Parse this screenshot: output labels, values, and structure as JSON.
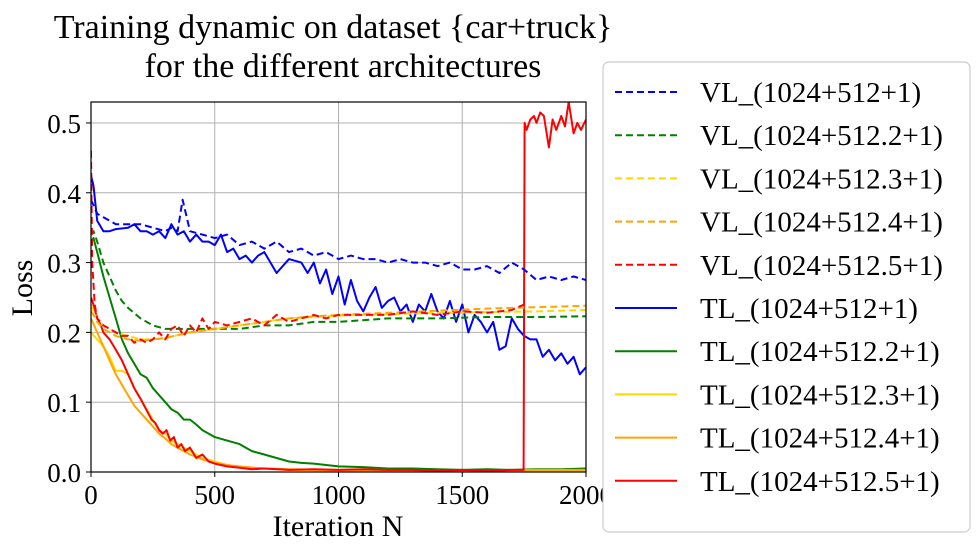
{
  "chart_data": {
    "type": "line",
    "title": "Training dynamic on dataset {car+truck}",
    "subtitle": "for the different architectures",
    "xlabel": "Iteration N",
    "ylabel": "Loss",
    "xlim": [
      0,
      2000
    ],
    "ylim": [
      0,
      0.53
    ],
    "xticks": [
      "0",
      "500",
      "1000",
      "1500",
      "2000"
    ],
    "yticks": [
      "0.0",
      "0.1",
      "0.2",
      "0.3",
      "0.4",
      "0.5"
    ],
    "grid": true,
    "legend_position": "outside-right",
    "series": [
      {
        "name": "VL_(1024+512+1)",
        "color": "#0000ff",
        "dash": "dashed",
        "x": [
          0,
          25,
          50,
          75,
          100,
          150,
          200,
          250,
          300,
          325,
          350,
          370,
          400,
          450,
          500,
          550,
          600,
          650,
          700,
          750,
          800,
          850,
          900,
          950,
          1000,
          1050,
          1100,
          1150,
          1200,
          1250,
          1300,
          1350,
          1400,
          1450,
          1500,
          1550,
          1600,
          1650,
          1700,
          1750,
          1800,
          1850,
          1900,
          1950,
          2000
        ],
        "y": [
          0.39,
          0.37,
          0.365,
          0.36,
          0.355,
          0.355,
          0.355,
          0.35,
          0.345,
          0.35,
          0.345,
          0.39,
          0.345,
          0.34,
          0.335,
          0.34,
          0.325,
          0.33,
          0.32,
          0.33,
          0.315,
          0.32,
          0.31,
          0.315,
          0.305,
          0.31,
          0.305,
          0.305,
          0.3,
          0.305,
          0.3,
          0.3,
          0.295,
          0.3,
          0.29,
          0.29,
          0.295,
          0.285,
          0.3,
          0.29,
          0.275,
          0.28,
          0.275,
          0.28,
          0.275
        ]
      },
      {
        "name": "VL_(1024+512.2+1)",
        "color": "#008000",
        "dash": "dashed",
        "x": [
          0,
          10,
          25,
          50,
          75,
          100,
          125,
          150,
          200,
          250,
          300,
          350,
          400,
          500,
          600,
          700,
          800,
          900,
          1000,
          1200,
          1400,
          1600,
          1800,
          2000
        ],
        "y": [
          0.34,
          0.345,
          0.33,
          0.3,
          0.28,
          0.26,
          0.245,
          0.235,
          0.22,
          0.21,
          0.205,
          0.205,
          0.205,
          0.205,
          0.205,
          0.21,
          0.21,
          0.215,
          0.215,
          0.22,
          0.22,
          0.222,
          0.222,
          0.223
        ]
      },
      {
        "name": "VL_(1024+512.3+1)",
        "color": "#ffd700",
        "dash": "dashed",
        "x": [
          0,
          10,
          25,
          50,
          75,
          100,
          150,
          200,
          250,
          300,
          400,
          500,
          600,
          700,
          800,
          900,
          1000,
          1200,
          1400,
          1600,
          1800,
          2000
        ],
        "y": [
          0.24,
          0.23,
          0.22,
          0.21,
          0.205,
          0.2,
          0.195,
          0.19,
          0.19,
          0.192,
          0.2,
          0.205,
          0.21,
          0.215,
          0.22,
          0.222,
          0.224,
          0.226,
          0.228,
          0.229,
          0.23,
          0.232
        ]
      },
      {
        "name": "VL_(1024+512.4+1)",
        "color": "#ffa500",
        "dash": "dashed",
        "x": [
          0,
          10,
          25,
          50,
          75,
          100,
          150,
          200,
          250,
          300,
          400,
          500,
          600,
          700,
          800,
          900,
          1000,
          1200,
          1400,
          1600,
          1800,
          2000
        ],
        "y": [
          0.23,
          0.225,
          0.215,
          0.205,
          0.2,
          0.195,
          0.19,
          0.188,
          0.19,
          0.192,
          0.2,
          0.205,
          0.21,
          0.215,
          0.22,
          0.223,
          0.225,
          0.228,
          0.231,
          0.234,
          0.236,
          0.238
        ]
      },
      {
        "name": "VL_(1024+512.5+1)",
        "color": "#ff0000",
        "dash": "dashed",
        "x": [
          0,
          5,
          15,
          25,
          50,
          75,
          100,
          125,
          150,
          175,
          200,
          225,
          250,
          275,
          300,
          325,
          350,
          375,
          400,
          425,
          450,
          475,
          500,
          550,
          600,
          650,
          700,
          750,
          800,
          850,
          900,
          950,
          1000,
          1100,
          1200,
          1300,
          1400,
          1500,
          1600,
          1700,
          1750
        ],
        "y": [
          0.46,
          0.3,
          0.24,
          0.22,
          0.21,
          0.205,
          0.2,
          0.195,
          0.195,
          0.185,
          0.19,
          0.185,
          0.19,
          0.2,
          0.19,
          0.205,
          0.21,
          0.195,
          0.21,
          0.2,
          0.22,
          0.205,
          0.215,
          0.21,
          0.215,
          0.22,
          0.21,
          0.225,
          0.215,
          0.22,
          0.225,
          0.22,
          0.225,
          0.225,
          0.225,
          0.23,
          0.225,
          0.23,
          0.228,
          0.232,
          0.24
        ]
      },
      {
        "name": "TL_(1024+512+1)",
        "color": "#0000ff",
        "dash": "solid",
        "x": [
          0,
          10,
          25,
          50,
          75,
          100,
          150,
          175,
          200,
          225,
          250,
          275,
          300,
          325,
          350,
          375,
          400,
          425,
          450,
          475,
          500,
          525,
          550,
          575,
          600,
          625,
          650,
          675,
          700,
          750,
          800,
          850,
          875,
          900,
          925,
          950,
          975,
          1000,
          1025,
          1050,
          1075,
          1100,
          1125,
          1150,
          1175,
          1200,
          1225,
          1250,
          1275,
          1300,
          1325,
          1350,
          1375,
          1400,
          1425,
          1450,
          1475,
          1500,
          1525,
          1550,
          1575,
          1600,
          1625,
          1650,
          1675,
          1700,
          1725,
          1750,
          1775,
          1800,
          1825,
          1850,
          1875,
          1900,
          1925,
          1950,
          1975,
          2000
        ],
        "y": [
          0.425,
          0.41,
          0.36,
          0.345,
          0.345,
          0.348,
          0.35,
          0.355,
          0.345,
          0.345,
          0.34,
          0.345,
          0.335,
          0.355,
          0.34,
          0.345,
          0.33,
          0.34,
          0.33,
          0.33,
          0.325,
          0.34,
          0.315,
          0.32,
          0.305,
          0.31,
          0.3,
          0.31,
          0.315,
          0.285,
          0.305,
          0.3,
          0.285,
          0.3,
          0.27,
          0.29,
          0.255,
          0.28,
          0.24,
          0.275,
          0.245,
          0.23,
          0.25,
          0.265,
          0.235,
          0.245,
          0.25,
          0.23,
          0.24,
          0.215,
          0.24,
          0.23,
          0.255,
          0.23,
          0.22,
          0.245,
          0.215,
          0.24,
          0.2,
          0.225,
          0.215,
          0.2,
          0.215,
          0.175,
          0.18,
          0.22,
          0.205,
          0.195,
          0.19,
          0.19,
          0.165,
          0.175,
          0.16,
          0.17,
          0.155,
          0.165,
          0.14,
          0.15
        ]
      },
      {
        "name": "TL_(1024+512.2+1)",
        "color": "#008000",
        "dash": "solid",
        "x": [
          0,
          10,
          25,
          50,
          75,
          100,
          125,
          150,
          175,
          200,
          225,
          250,
          275,
          300,
          325,
          350,
          375,
          400,
          425,
          450,
          475,
          500,
          550,
          600,
          650,
          700,
          750,
          800,
          850,
          900,
          950,
          1000,
          1100,
          1200,
          1300,
          1400,
          1500,
          1600,
          1700,
          1800,
          1900,
          2000
        ],
        "y": [
          0.33,
          0.335,
          0.315,
          0.28,
          0.25,
          0.22,
          0.19,
          0.17,
          0.155,
          0.14,
          0.135,
          0.12,
          0.11,
          0.1,
          0.09,
          0.085,
          0.075,
          0.075,
          0.068,
          0.06,
          0.055,
          0.05,
          0.045,
          0.04,
          0.03,
          0.025,
          0.02,
          0.015,
          0.013,
          0.012,
          0.01,
          0.008,
          0.007,
          0.005,
          0.005,
          0.004,
          0.003,
          0.004,
          0.003,
          0.004,
          0.004,
          0.005
        ]
      },
      {
        "name": "TL_(1024+512.3+1)",
        "color": "#ffd700",
        "dash": "solid",
        "x": [
          0,
          25,
          50,
          75,
          100,
          125,
          150,
          175,
          200,
          225,
          250,
          275,
          300,
          325,
          350,
          375,
          400,
          450,
          500,
          550,
          600,
          700,
          800,
          1000,
          1200,
          1400,
          1600,
          1800,
          2000
        ],
        "y": [
          0.2,
          0.19,
          0.18,
          0.165,
          0.145,
          0.145,
          0.14,
          0.12,
          0.105,
          0.09,
          0.075,
          0.06,
          0.055,
          0.045,
          0.04,
          0.035,
          0.03,
          0.02,
          0.015,
          0.01,
          0.007,
          0.005,
          0.003,
          0.002,
          0.002,
          0.002,
          0.002,
          0.002,
          0.002
        ]
      },
      {
        "name": "TL_(1024+512.4+1)",
        "color": "#ffa500",
        "dash": "solid",
        "x": [
          0,
          25,
          50,
          75,
          100,
          125,
          150,
          175,
          200,
          225,
          250,
          275,
          300,
          325,
          350,
          375,
          400,
          450,
          500,
          550,
          600,
          700,
          800,
          1000,
          1200,
          1400,
          1600,
          1800,
          2000
        ],
        "y": [
          0.22,
          0.2,
          0.18,
          0.16,
          0.14,
          0.125,
          0.11,
          0.095,
          0.085,
          0.075,
          0.065,
          0.055,
          0.048,
          0.04,
          0.035,
          0.03,
          0.025,
          0.018,
          0.013,
          0.01,
          0.008,
          0.005,
          0.004,
          0.003,
          0.003,
          0.002,
          0.002,
          0.003,
          0.003
        ]
      },
      {
        "name": "TL_(1024+512.5+1)",
        "color": "#ff0000",
        "dash": "solid",
        "x": [
          0,
          10,
          25,
          40,
          50,
          75,
          100,
          125,
          150,
          175,
          200,
          215,
          230,
          245,
          260,
          275,
          290,
          305,
          320,
          335,
          350,
          365,
          380,
          400,
          425,
          450,
          475,
          500,
          550,
          600,
          650,
          700,
          800,
          900,
          1000,
          1100,
          1200,
          1300,
          1400,
          1500,
          1600,
          1700,
          1748,
          1752,
          1760,
          1775,
          1790,
          1800,
          1815,
          1830,
          1850,
          1865,
          1880,
          1900,
          1915,
          1930,
          1950,
          1965,
          1980,
          2000
        ],
        "y": [
          0.25,
          0.24,
          0.22,
          0.21,
          0.2,
          0.19,
          0.175,
          0.16,
          0.14,
          0.12,
          0.105,
          0.095,
          0.085,
          0.075,
          0.07,
          0.06,
          0.055,
          0.06,
          0.045,
          0.05,
          0.035,
          0.04,
          0.03,
          0.035,
          0.02,
          0.025,
          0.015,
          0.012,
          0.008,
          0.006,
          0.004,
          0.005,
          0.003,
          0.004,
          0.003,
          0.004,
          0.003,
          0.003,
          0.002,
          0.003,
          0.002,
          0.003,
          0.003,
          0.5,
          0.49,
          0.505,
          0.51,
          0.5,
          0.515,
          0.51,
          0.465,
          0.505,
          0.49,
          0.51,
          0.495,
          0.53,
          0.485,
          0.5,
          0.49,
          0.505
        ]
      }
    ]
  }
}
